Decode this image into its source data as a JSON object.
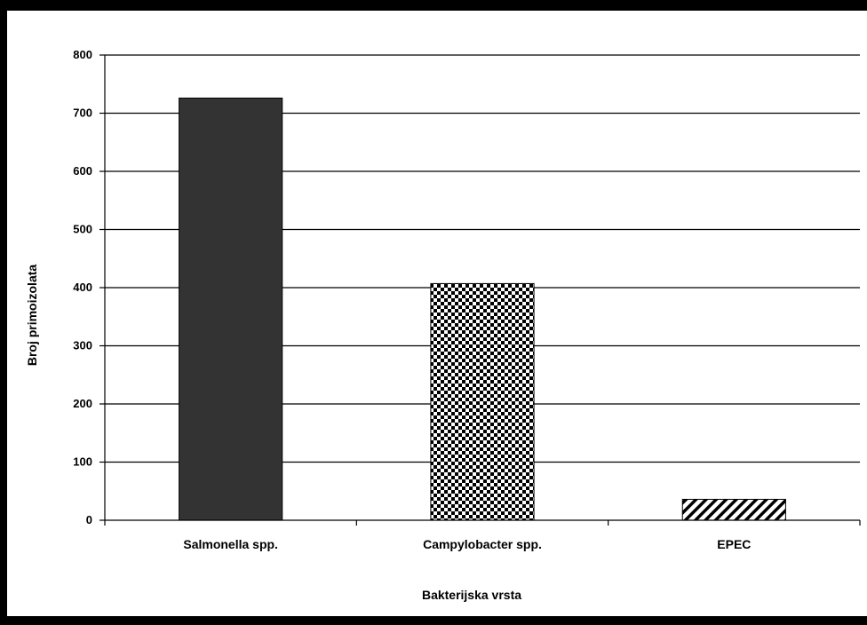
{
  "chart_data": {
    "type": "bar",
    "title": "",
    "xlabel": "Bakterijska vrsta",
    "ylabel": "Broj primoizolata",
    "categories": [
      "Salmonella spp.",
      "Campylobacter spp.",
      "EPEC"
    ],
    "values": [
      726,
      407,
      36
    ],
    "patterns": [
      "solid-dark",
      "checkerboard",
      "diagonal-hatch"
    ],
    "ylim": [
      0,
      800
    ],
    "yticks": [
      0,
      100,
      200,
      300,
      400,
      500,
      600,
      700,
      800
    ],
    "grid": true,
    "legend": "none",
    "colors": {
      "bar": "#333333",
      "pattern": "#000000",
      "background": "#ffffff",
      "frame": "#000000"
    }
  }
}
